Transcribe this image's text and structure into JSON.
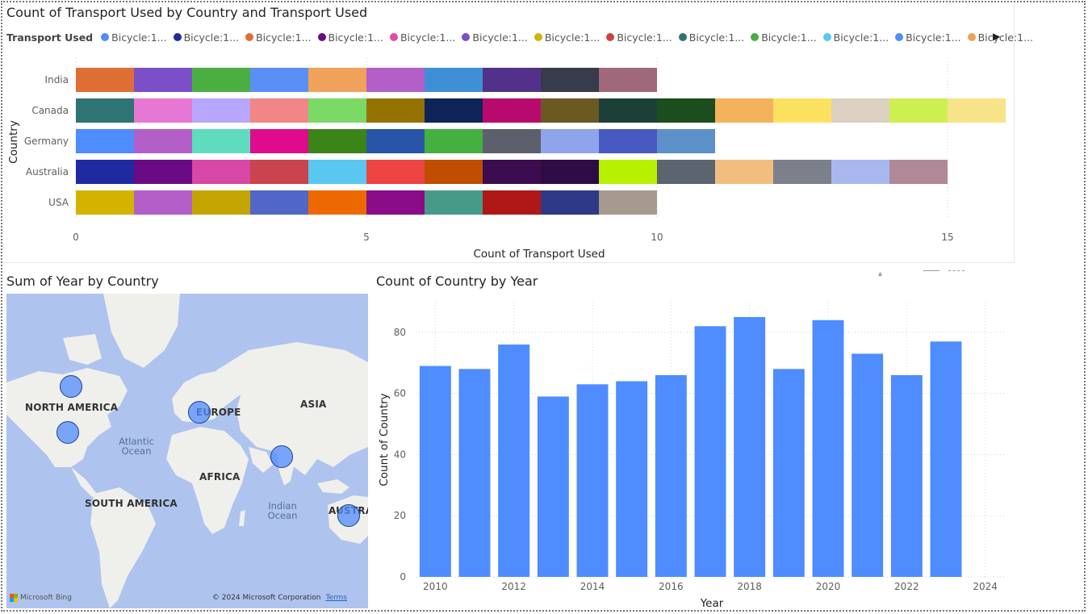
{
  "transport_chart": {
    "title": "Count of Transport Used by Country and Transport Used",
    "legend_title": "Transport Used",
    "legend_items": [
      {
        "label": "Bicycle:1...",
        "color": "#4e8cff"
      },
      {
        "label": "Bicycle:1...",
        "color": "#1f2aa0"
      },
      {
        "label": "Bicycle:1...",
        "color": "#df6e35"
      },
      {
        "label": "Bicycle:1...",
        "color": "#6a0a85"
      },
      {
        "label": "Bicycle:1...",
        "color": "#e04aa6"
      },
      {
        "label": "Bicycle:1...",
        "color": "#7b4fc8"
      },
      {
        "label": "Bicycle:1...",
        "color": "#d4b300"
      },
      {
        "label": "Bicycle:1...",
        "color": "#d23f47"
      },
      {
        "label": "Bicycle:1...",
        "color": "#2f7474"
      },
      {
        "label": "Bicycle:1...",
        "color": "#4aaf40"
      },
      {
        "label": "Bicycle:1...",
        "color": "#59c7f0"
      },
      {
        "label": "Bicycle:1...",
        "color": "#4e8cff"
      },
      {
        "label": "Bicycle:1...",
        "color": "#f0a25a"
      }
    ],
    "legend_arrow": "▶"
  },
  "map_visual": {
    "title": "Sum of Year by Country",
    "labels": {
      "north_america": "NORTH AMERICA",
      "europe": "EUROPE",
      "asia": "ASIA",
      "africa": "AFRICA",
      "south_america": "SOUTH AMERICA",
      "australia": "AUSTRA",
      "atlantic": "Atlantic Ocean",
      "indian": "Indian Ocean"
    },
    "bing": "Microsoft Bing",
    "copyright": "© 2024 Microsoft Corporation",
    "terms": "Terms",
    "colors": {
      "water": "#aec3ee",
      "land": "#efefec",
      "bubble": "#4e8cff"
    }
  },
  "chart_data": [
    {
      "type": "bar",
      "orientation": "horizontal",
      "stacked": true,
      "title": "Count of Transport Used by Country and Transport Used",
      "xlabel": "Count of Transport Used",
      "ylabel": "Country",
      "xlim": [
        0,
        16
      ],
      "xticks": [
        0,
        5,
        10,
        15
      ],
      "categories": [
        "India",
        "Canada",
        "Germany",
        "Australia",
        "USA"
      ],
      "segment_value": 1,
      "segments": {
        "India": [
          "#df6e35",
          "#7a4fc8",
          "#4aaf40",
          "#5a8ff8",
          "#f0a25a",
          "#b45ec8",
          "#3e8fd6",
          "#53318a",
          "#373b4a",
          "#a0687a"
        ],
        "Canada": [
          "#2f7474",
          "#e678d4",
          "#b8a6ff",
          "#f28585",
          "#7bd966",
          "#957200",
          "#0e2357",
          "#b80a6c",
          "#6a5a22",
          "#1c4038",
          "#1d4d1d",
          "#f4b25c",
          "#fce160",
          "#dcd0c0",
          "#cdef4f",
          "#f7e388"
        ],
        "Germany": [
          "#4e8cff",
          "#b45ec8",
          "#5fdcc0",
          "#de0c8c",
          "#3b8418",
          "#2955a8",
          "#44b040",
          "#5c606c",
          "#90a4ec",
          "#4659c0",
          "#5c90c8"
        ],
        "Australia": [
          "#1f2aa0",
          "#6a0a85",
          "#d846a6",
          "#c9444c",
          "#59c7f0",
          "#ee4444",
          "#c04d00",
          "#3d0c50",
          "#2e0c46",
          "#b8f000",
          "#5c6470",
          "#f2be80",
          "#7c808a",
          "#a8b8ee",
          "#b08898"
        ],
        "USA": [
          "#d4b300",
          "#b45ec8",
          "#c4a400",
          "#5067c8",
          "#ee6800",
          "#8a0c88",
          "#489a88",
          "#b01818",
          "#2e3a88",
          "#a69a8e"
        ]
      }
    },
    {
      "type": "bar",
      "title": "Count of Country by Year",
      "xlabel": "Year",
      "ylabel": "Count of Country",
      "ylim": [
        0,
        90
      ],
      "yticks": [
        0,
        20,
        40,
        60,
        80
      ],
      "xticks": [
        2010,
        2012,
        2014,
        2016,
        2018,
        2020,
        2022,
        2024
      ],
      "categories": [
        2010,
        2011,
        2012,
        2013,
        2014,
        2015,
        2016,
        2017,
        2018,
        2019,
        2020,
        2021,
        2022,
        2023
      ],
      "values": [
        69,
        68,
        76,
        59,
        63,
        64,
        66,
        82,
        85,
        68,
        84,
        73,
        66,
        77
      ],
      "color": "#4e8cff"
    }
  ]
}
